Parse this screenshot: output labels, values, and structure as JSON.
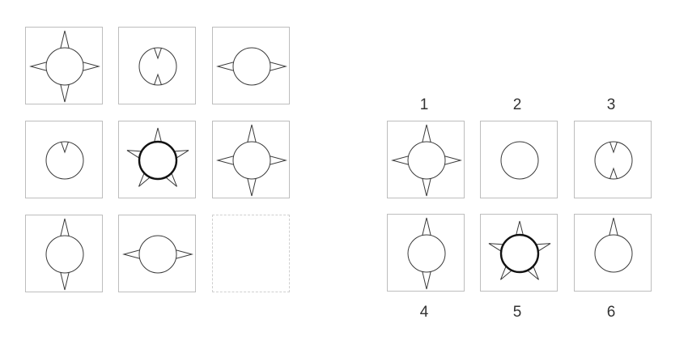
{
  "puzzle": {
    "matrix": [
      {
        "figure": "circle-four-spikes",
        "spikes": [
          "up",
          "right",
          "down",
          "left"
        ],
        "bold": false
      },
      {
        "figure": "circle-inner-notches",
        "notches": [
          "top",
          "bottom"
        ],
        "bold": false
      },
      {
        "figure": "circle-two-spikes",
        "spikes": [
          "right",
          "left"
        ],
        "bold": false
      },
      {
        "figure": "circle-inner-notch",
        "notches": [
          "top"
        ],
        "bold": false
      },
      {
        "figure": "circle-five-spikes",
        "spikes": [
          "star"
        ],
        "bold": true
      },
      {
        "figure": "circle-four-spikes",
        "spikes": [
          "up",
          "right",
          "down",
          "left"
        ],
        "bold": false
      },
      {
        "figure": "circle-two-spikes",
        "spikes": [
          "up",
          "down"
        ],
        "bold": false
      },
      {
        "figure": "circle-two-spikes",
        "spikes": [
          "right",
          "left"
        ],
        "bold": false
      },
      {
        "figure": "blank",
        "missing": true
      }
    ],
    "options": [
      {
        "label": "1",
        "figure": "circle-four-spikes",
        "spikes": [
          "up",
          "right",
          "down",
          "left"
        ],
        "bold": false
      },
      {
        "label": "2",
        "figure": "circle-plain",
        "spikes": [],
        "bold": false
      },
      {
        "label": "3",
        "figure": "circle-inner-notches",
        "notches": [
          "top",
          "bottom"
        ],
        "bold": false
      },
      {
        "label": "4",
        "figure": "circle-two-spikes",
        "spikes": [
          "up",
          "down"
        ],
        "bold": false
      },
      {
        "label": "5",
        "figure": "circle-five-spikes",
        "spikes": [
          "star"
        ],
        "bold": true
      },
      {
        "label": "6",
        "figure": "circle-one-spike",
        "spikes": [
          "up"
        ],
        "bold": false
      }
    ]
  }
}
